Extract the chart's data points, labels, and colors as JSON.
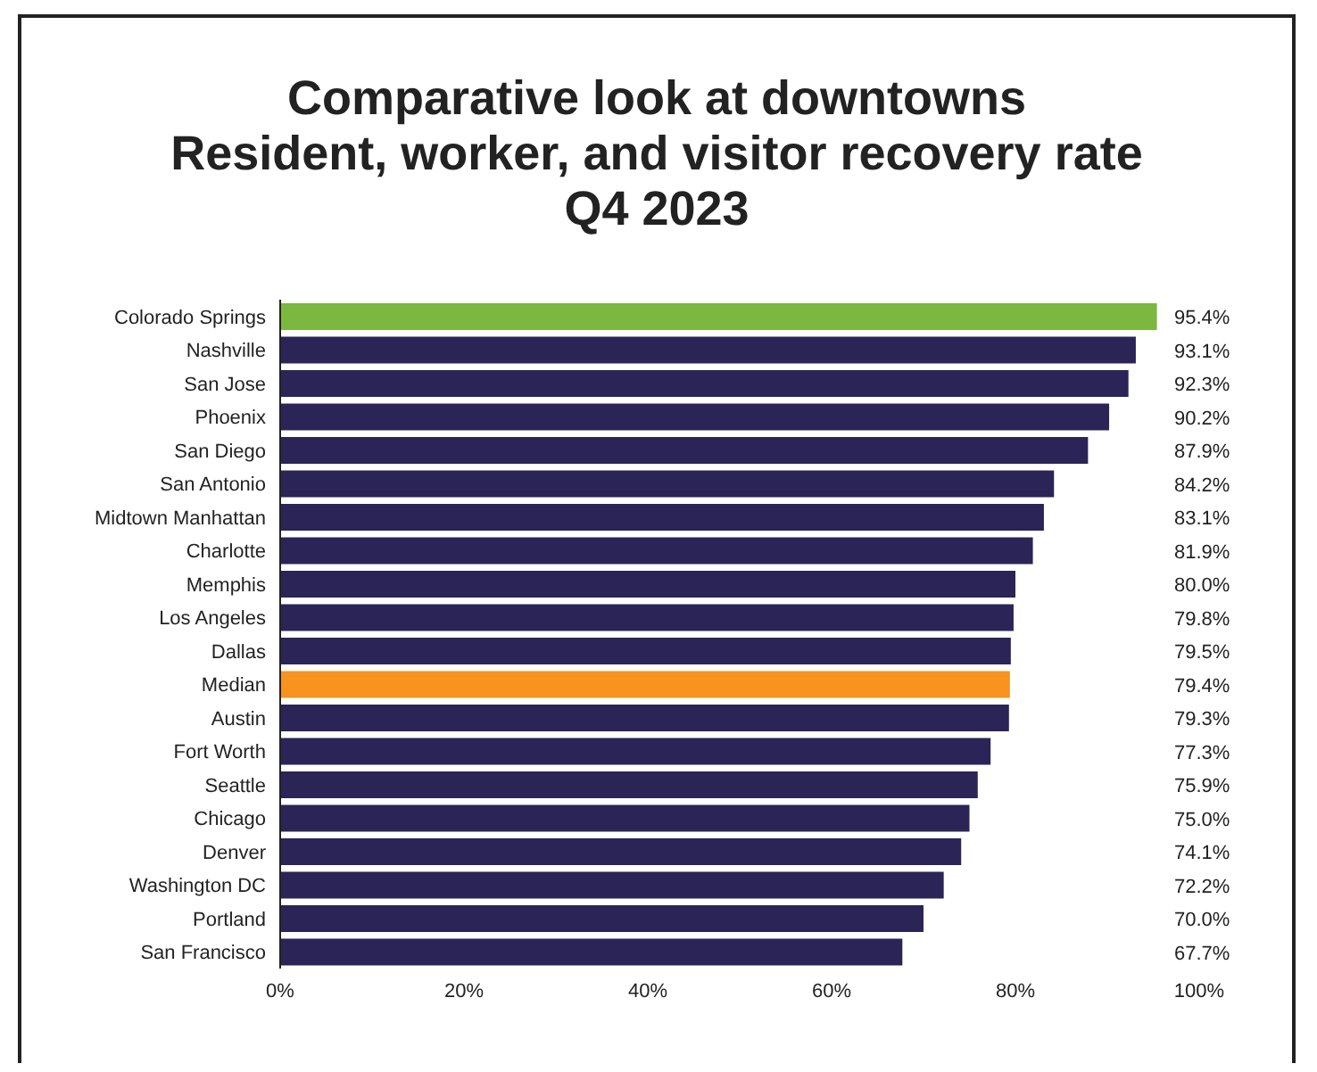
{
  "chart_data": {
    "type": "bar",
    "orientation": "horizontal",
    "title": "Comparative look at downtowns\nResident, worker, and visitor recovery rate\nQ4 2023",
    "categories": [
      "Colorado Springs",
      "Nashville",
      "San Jose",
      "Phoenix",
      "San Diego",
      "San Antonio",
      "Midtown Manhattan",
      "Charlotte",
      "Memphis",
      "Los Angeles",
      "Dallas",
      "Median",
      "Austin",
      "Fort Worth",
      "Seattle",
      "Chicago",
      "Denver",
      "Washington DC",
      "Portland",
      "San Francisco"
    ],
    "values": [
      95.4,
      93.1,
      92.3,
      90.2,
      87.9,
      84.2,
      83.1,
      81.9,
      80.0,
      79.8,
      79.5,
      79.4,
      79.3,
      77.3,
      75.9,
      75.0,
      74.1,
      72.2,
      70.0,
      67.7
    ],
    "value_labels": [
      "95.4%",
      "93.1%",
      "92.3%",
      "90.2%",
      "87.9%",
      "84.2%",
      "83.1%",
      "81.9%",
      "80.0%",
      "79.8%",
      "79.5%",
      "79.4%",
      "79.3%",
      "77.3%",
      "75.9%",
      "75.0%",
      "74.1%",
      "72.2%",
      "70.0%",
      "67.7%"
    ],
    "colors": [
      "#7cb73f",
      "#2b2456",
      "#2b2456",
      "#2b2456",
      "#2b2456",
      "#2b2456",
      "#2b2456",
      "#2b2456",
      "#2b2456",
      "#2b2456",
      "#2b2456",
      "#f7931e",
      "#2b2456",
      "#2b2456",
      "#2b2456",
      "#2b2456",
      "#2b2456",
      "#2b2456",
      "#2b2456",
      "#2b2456"
    ],
    "xlim": [
      0,
      100
    ],
    "xticks": [
      {
        "value": 0,
        "label": "0%"
      },
      {
        "value": 20,
        "label": "20%"
      },
      {
        "value": 40,
        "label": "40%"
      },
      {
        "value": 60,
        "label": "60%"
      },
      {
        "value": 80,
        "label": "80%"
      },
      {
        "value": 100,
        "label": "100%"
      }
    ]
  }
}
